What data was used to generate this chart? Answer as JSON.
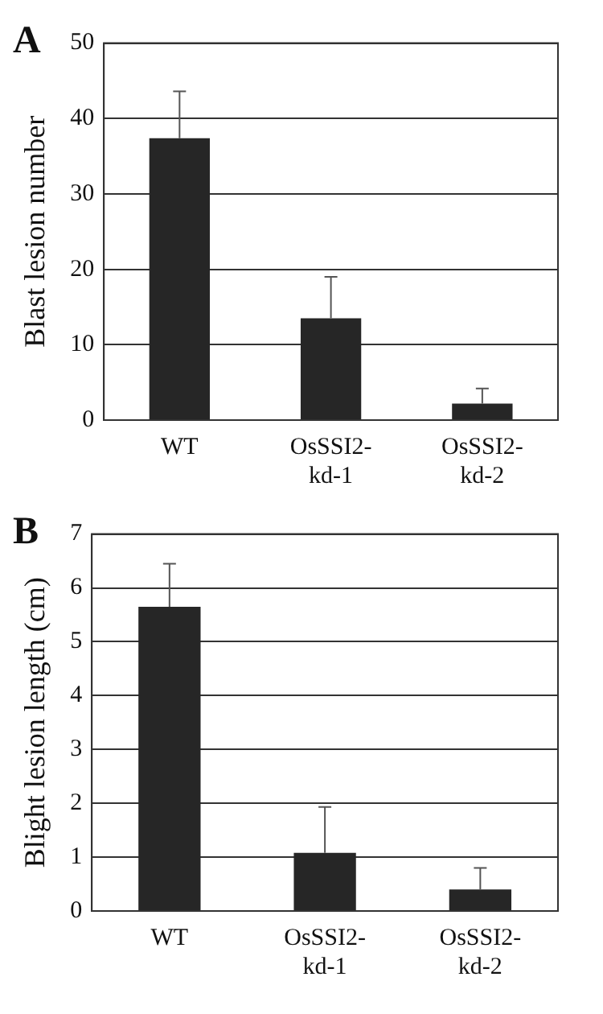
{
  "chart_data": [
    {
      "type": "bar",
      "title": "A",
      "ylabel": "Blast lesion number",
      "categories": [
        "WT",
        "OsSSI2-kd-1",
        "OsSSI2-kd-2"
      ],
      "values": [
        37.4,
        13.5,
        2.2
      ],
      "errors": [
        [
          37.4,
          43.6
        ],
        [
          13.5,
          19
        ],
        [
          2.2,
          4.2
        ]
      ],
      "color": "#262626",
      "ylim": [
        0,
        50
      ],
      "yticks": [
        0,
        10,
        20,
        30,
        40,
        50
      ],
      "grid": "y"
    },
    {
      "type": "bar",
      "title": "B",
      "ylabel": "Blight lesion length (cm)",
      "categories": [
        "WT",
        "OsSSI2-kd-1",
        "OsSSI2-kd-2"
      ],
      "values": [
        5.65,
        1.08,
        0.4
      ],
      "errors": [
        [
          5.65,
          6.45
        ],
        [
          1.08,
          1.93
        ],
        [
          0.4,
          0.8
        ]
      ],
      "color": "#262626",
      "ylim": [
        0,
        7
      ],
      "yticks": [
        0,
        1,
        2,
        3,
        4,
        5,
        6,
        7
      ],
      "grid": "y"
    }
  ]
}
